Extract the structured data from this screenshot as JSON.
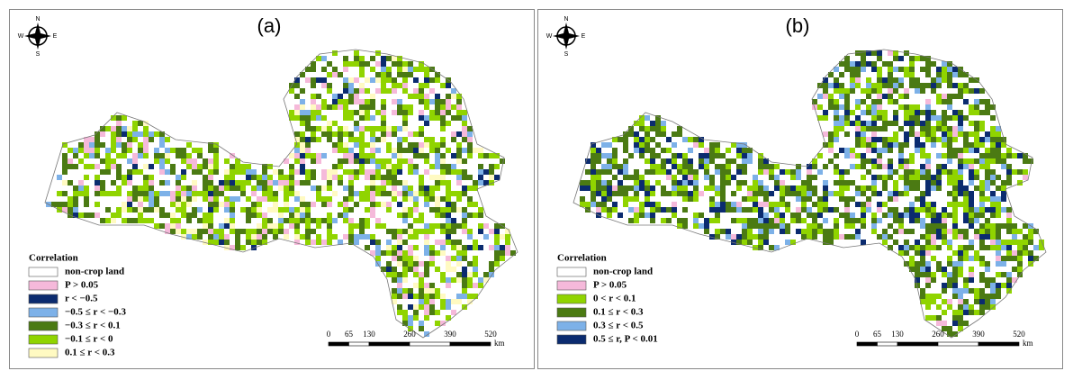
{
  "panels": [
    {
      "label": "(a)",
      "compass": {
        "n": "N",
        "s": "S",
        "w": "W",
        "e": "E"
      },
      "legend": {
        "title": "Correlation",
        "items": [
          {
            "label": "non-crop land",
            "color": "#ffffff"
          },
          {
            "label": "P > 0.05",
            "color": "#f5b9da"
          },
          {
            "label": "r < −0.5",
            "color": "#0b2b6f"
          },
          {
            "label": "−0.5 ≤ r < −0.3",
            "color": "#7db1e8"
          },
          {
            "label": "−0.3 ≤ r < 0.1",
            "color": "#4b7a13"
          },
          {
            "label": "−0.1 ≤ r < 0",
            "color": "#90d400"
          },
          {
            "label": "0.1 ≤ r < 0.3",
            "color": "#fffac2"
          }
        ]
      },
      "scale": {
        "ticks": [
          0,
          65,
          130,
          260,
          390,
          520
        ],
        "unit": "km"
      }
    },
    {
      "label": "(b)",
      "compass": {
        "n": "N",
        "s": "S",
        "w": "W",
        "e": "E"
      },
      "legend": {
        "title": "Correlation",
        "items": [
          {
            "label": "non-crop land",
            "color": "#ffffff"
          },
          {
            "label": "P > 0.05",
            "color": "#f5b9da"
          },
          {
            "label": "0 < r < 0.1",
            "color": "#90d400"
          },
          {
            "label": "0.1 ≤ r < 0.3",
            "color": "#4b7a13"
          },
          {
            "label": "0.3 ≤ r < 0.5",
            "color": "#7db1e8"
          },
          {
            "label": "0.5 ≤ r, P < 0.01",
            "color": "#0b2b6f"
          }
        ]
      },
      "scale": {
        "ticks": [
          0,
          65,
          130,
          260,
          390,
          520
        ],
        "unit": "km"
      }
    }
  ]
}
